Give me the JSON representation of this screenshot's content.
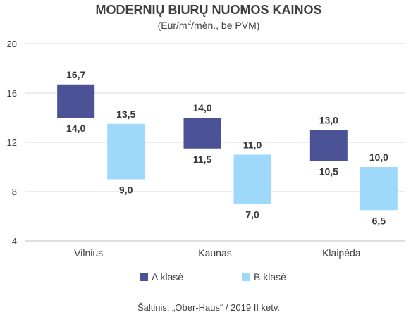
{
  "chart_data": {
    "type": "bar",
    "subtype": "floating-range",
    "title": "MODERNIŲ BIURŲ NUOMOS KAINOS",
    "subtitle": {
      "before": "(Eur/m",
      "sup": "2",
      "after": "/mėn., be PVM)"
    },
    "categories": [
      "Vilnius",
      "Kaunas",
      "Klaipėda"
    ],
    "ylim": [
      4,
      20
    ],
    "yticks": [
      "4",
      "8",
      "12",
      "16",
      "20"
    ],
    "ytick_values": [
      4,
      8,
      12,
      16,
      20
    ],
    "grid": true,
    "legend_position": "bottom",
    "series": [
      {
        "name": "A klasė",
        "color": "#4b5396",
        "low": [
          14.0,
          11.5,
          10.5
        ],
        "high": [
          16.7,
          14.0,
          13.0
        ],
        "low_labels": [
          "14,0",
          "11,5",
          "10,5"
        ],
        "high_labels": [
          "16,7",
          "14,0",
          "13,0"
        ]
      },
      {
        "name": "B klasė",
        "color": "#9ed9fb",
        "low": [
          9.0,
          7.0,
          6.5
        ],
        "high": [
          13.5,
          11.0,
          10.0
        ],
        "low_labels": [
          "9,0",
          "7,0",
          "6,5"
        ],
        "high_labels": [
          "13,5",
          "11,0",
          "10,0"
        ]
      }
    ],
    "source": "Šaltinis: „Ober-Haus“ / 2019 II ketv."
  }
}
